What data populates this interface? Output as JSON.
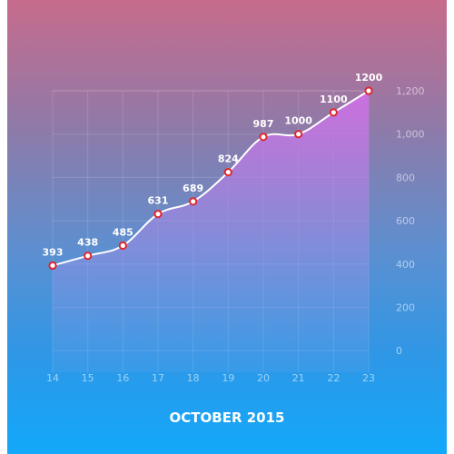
{
  "colors": {
    "line": "#ffffff",
    "point_fill": "#ffffff",
    "point_stroke": "#e0262d",
    "area_top": "#cf6fe3",
    "area_bottom": "#7aa3e6"
  },
  "chart_data": {
    "type": "area",
    "title": "",
    "xlabel": "OCTOBER 2015",
    "ylabel": "",
    "x": [
      "14",
      "15",
      "16",
      "17",
      "18",
      "19",
      "20",
      "21",
      "22",
      "23"
    ],
    "values": [
      393,
      438,
      485,
      631,
      689,
      824,
      987,
      1000,
      1100,
      1200
    ],
    "data_labels": [
      "393",
      "438",
      "485",
      "631",
      "689",
      "824",
      "987",
      "1000",
      "1100",
      "1200"
    ],
    "y_ticks": [
      0,
      200,
      400,
      600,
      800,
      1000,
      1200
    ],
    "y_tick_labels": [
      "0",
      "200",
      "400",
      "600",
      "800",
      "1,000",
      "1,200"
    ],
    "ylim": [
      -100,
      1200
    ],
    "grid": true,
    "legend": "none",
    "y_axis_position": "right"
  }
}
